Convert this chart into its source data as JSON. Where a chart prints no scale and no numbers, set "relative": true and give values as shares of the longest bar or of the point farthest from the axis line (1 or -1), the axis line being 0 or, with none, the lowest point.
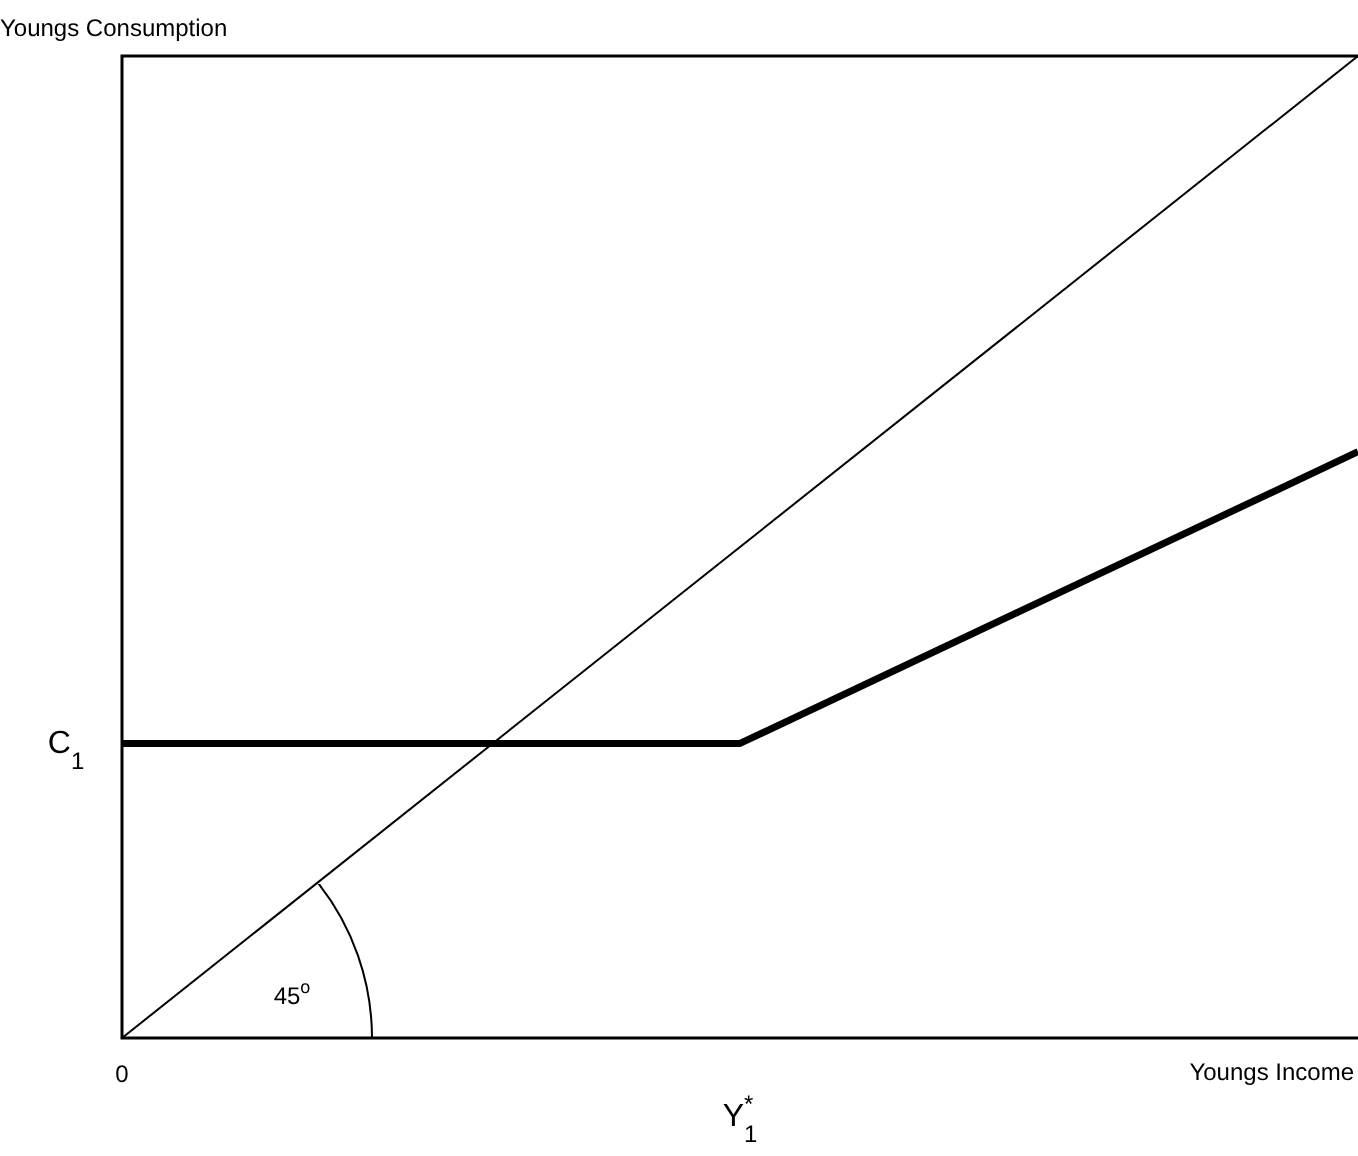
{
  "chart_data": {
    "type": "line",
    "relative": true,
    "xlabel": "Youngs Income",
    "ylabel": "Youngs Consumption",
    "categories": [
      "0",
      "Y$^{*}$$_{1}$",
      null
    ],
    "series": [
      {
        "color": "#000000",
        "values": [
          0,
          0.5,
          1
        ]
      },
      {
        "color": "#000000",
        "values": [
          0.3,
          0.3,
          0.597
        ]
      }
    ],
    "annotations": [
      "C$_{1}$",
      "45$^{o}$"
    ],
    "legend": false,
    "marker": "none"
  }
}
